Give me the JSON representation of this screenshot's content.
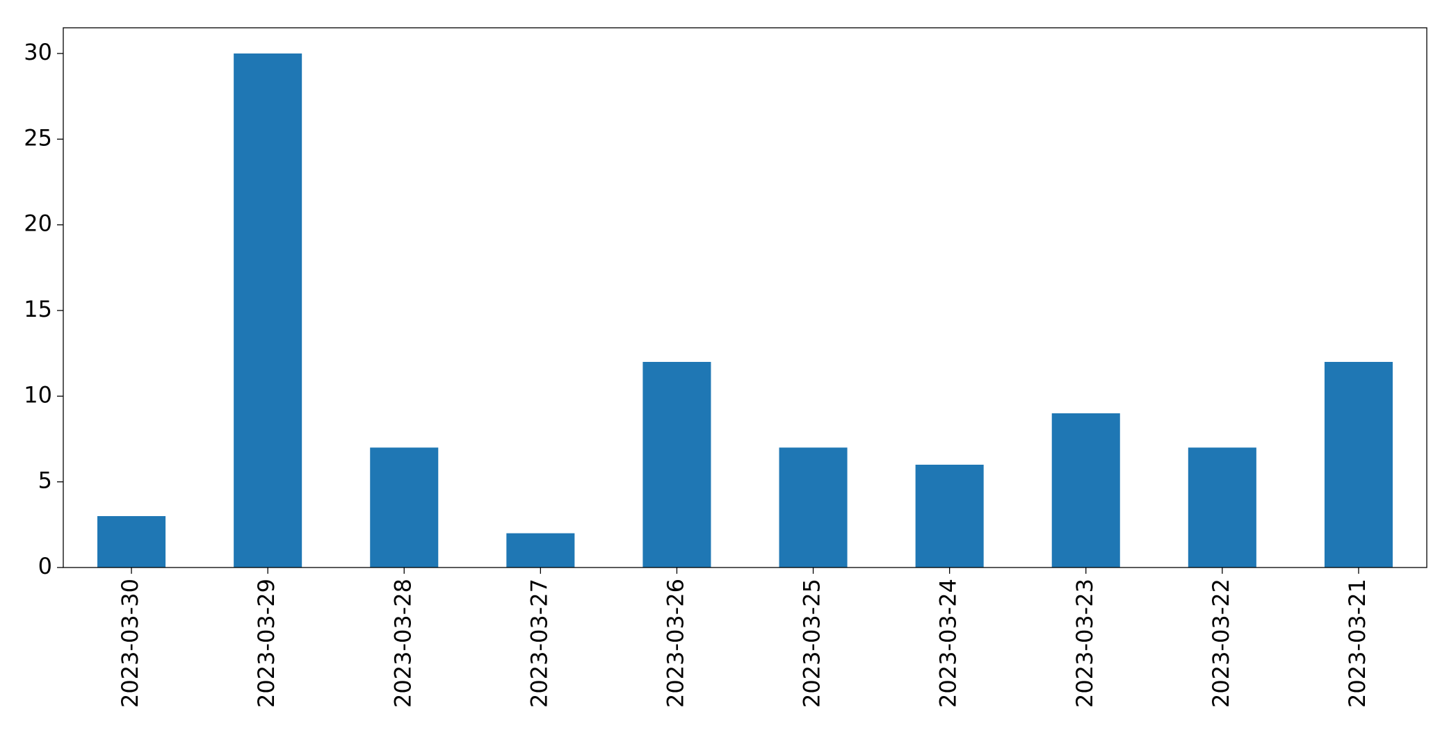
{
  "chart_data": {
    "type": "bar",
    "categories": [
      "2023-03-30",
      "2023-03-29",
      "2023-03-28",
      "2023-03-27",
      "2023-03-26",
      "2023-03-25",
      "2023-03-24",
      "2023-03-23",
      "2023-03-22",
      "2023-03-21"
    ],
    "values": [
      3,
      30,
      7,
      2,
      12,
      7,
      6,
      9,
      7,
      12
    ],
    "color": "#1f77b4",
    "ylim": [
      0,
      31.5
    ],
    "yticks": [
      0,
      5,
      10,
      15,
      20,
      25,
      30
    ],
    "grid": false
  }
}
